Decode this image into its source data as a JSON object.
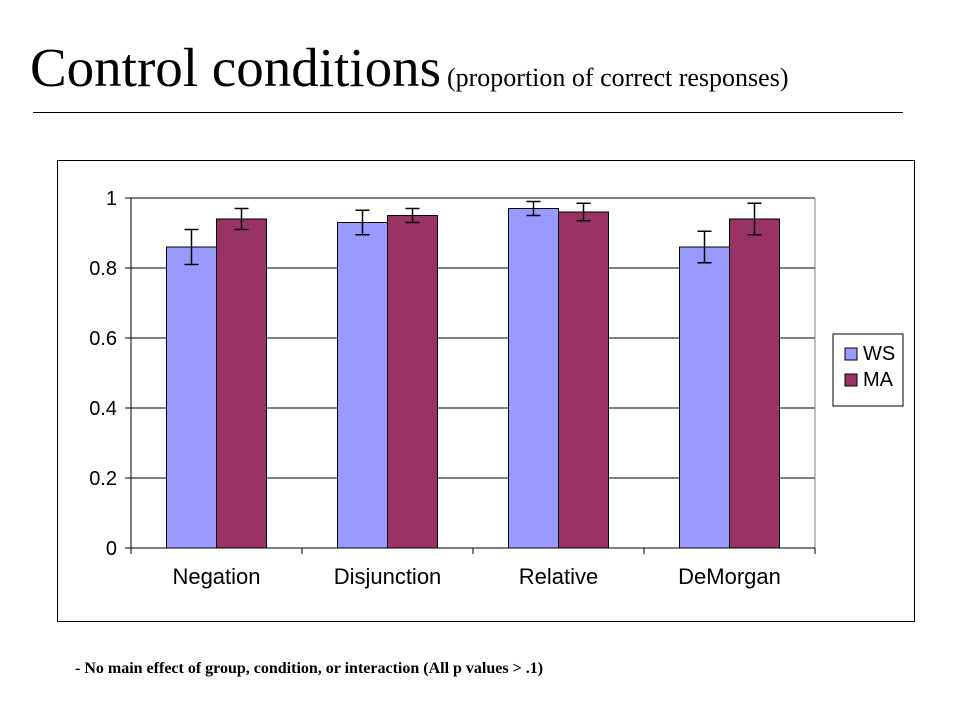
{
  "slide": {
    "title_main": "Control conditions",
    "title_sub": "(proportion of correct responses)",
    "note": "- No main effect of group, condition, or interaction (All p values > .1)"
  },
  "colors": {
    "WS": "#9999ff",
    "MA": "#993366"
  },
  "chart_data": {
    "type": "bar",
    "categories": [
      "Negation",
      "Disjunction",
      "Relative",
      "DeMorgan"
    ],
    "series": [
      {
        "name": "WS",
        "values": [
          0.86,
          0.93,
          0.97,
          0.86
        ],
        "error": [
          0.05,
          0.035,
          0.02,
          0.045
        ]
      },
      {
        "name": "MA",
        "values": [
          0.94,
          0.95,
          0.96,
          0.94
        ],
        "error": [
          0.03,
          0.02,
          0.025,
          0.045
        ]
      }
    ],
    "ylim": [
      0,
      1
    ],
    "yticks": [
      "0",
      "0.2",
      "0.4",
      "0.6",
      "0.8",
      "1"
    ],
    "ytick_values": [
      0,
      0.2,
      0.4,
      0.6,
      0.8,
      1
    ],
    "grid": true,
    "legend_position": "right"
  }
}
